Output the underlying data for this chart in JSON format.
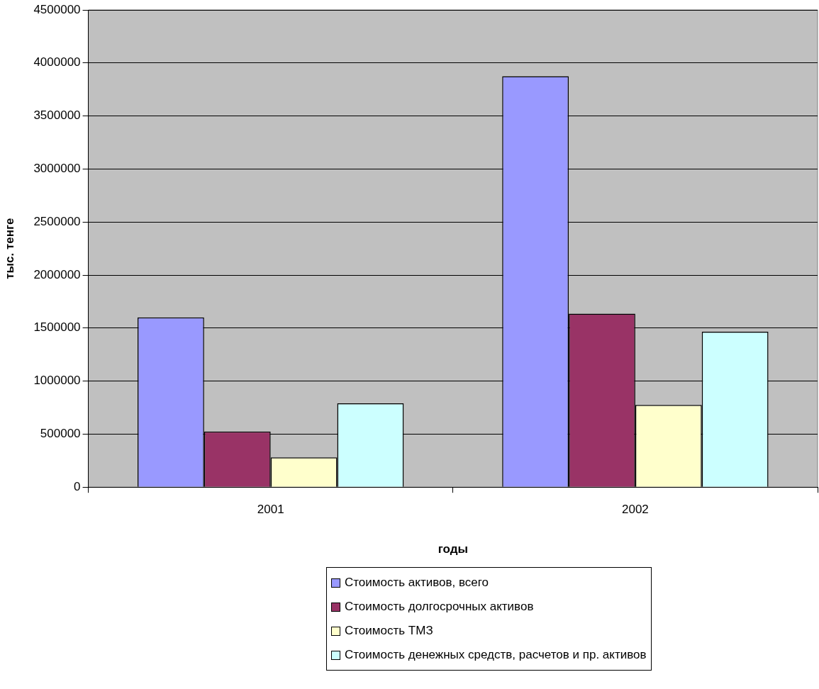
{
  "chart_data": {
    "type": "bar",
    "categories": [
      "2001",
      "2002"
    ],
    "xlabel": "годы",
    "ylabel": "тыс. тенге",
    "ylim": [
      0,
      4500000
    ],
    "yticks": [
      0,
      500000,
      1000000,
      1500000,
      2000000,
      2500000,
      3000000,
      3500000,
      4000000,
      4500000
    ],
    "grid": "y",
    "legend": "bottom",
    "series": [
      {
        "name": "Стоимость активов, всего",
        "color": "#9999ff",
        "values": [
          1600000,
          3875000
        ]
      },
      {
        "name": "Стоимость долгосрочных активов",
        "color": "#993366",
        "values": [
          525000,
          1635000
        ]
      },
      {
        "name": "Стоимость ТМЗ",
        "color": "#ffffcc",
        "values": [
          280000,
          775000
        ]
      },
      {
        "name": "Стоимость денежных средств, расчетов и пр. активов",
        "color": "#ccffff",
        "values": [
          790000,
          1465000
        ]
      }
    ]
  }
}
